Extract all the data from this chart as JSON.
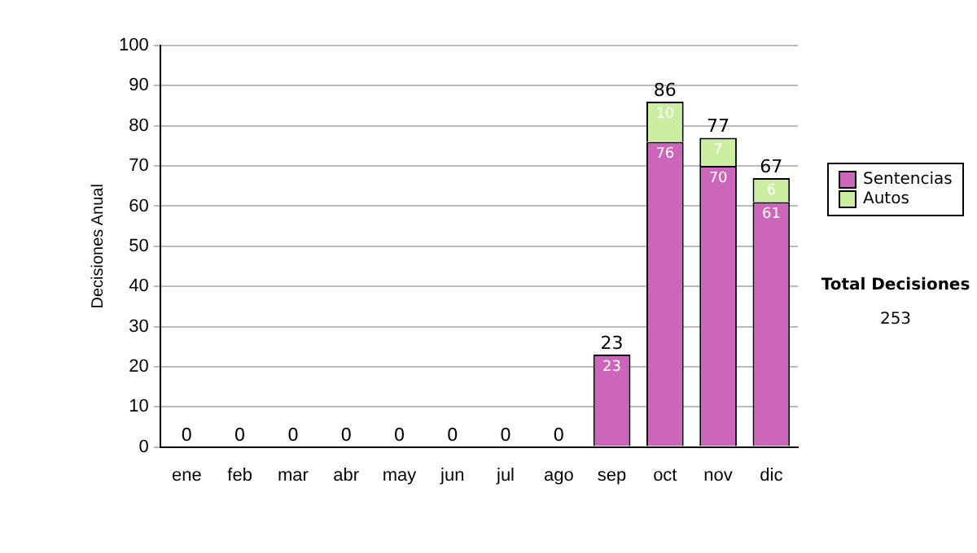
{
  "chart_data": {
    "type": "bar",
    "stacked": true,
    "ylabel": "Decisiones Anual",
    "categories": [
      "ene",
      "feb",
      "mar",
      "abr",
      "may",
      "jun",
      "jul",
      "ago",
      "sep",
      "oct",
      "nov",
      "dic"
    ],
    "series": [
      {
        "name": "Sentencias",
        "color": "#cc66bb",
        "values": [
          0,
          0,
          0,
          0,
          0,
          0,
          0,
          0,
          23,
          76,
          70,
          61
        ],
        "value_labels": [
          null,
          null,
          null,
          null,
          null,
          null,
          null,
          null,
          "23",
          "76",
          "70",
          "61"
        ]
      },
      {
        "name": "Autos",
        "color": "#cceea0",
        "values": [
          0,
          0,
          0,
          0,
          0,
          0,
          0,
          0,
          0,
          10,
          7,
          6
        ],
        "value_labels": [
          null,
          null,
          null,
          null,
          null,
          null,
          null,
          null,
          null,
          "10",
          "7",
          "6"
        ]
      }
    ],
    "totals": [
      "0",
      "0",
      "0",
      "0",
      "0",
      "0",
      "0",
      "0",
      "23",
      "86",
      "77",
      "67"
    ],
    "ylim": [
      0,
      100
    ],
    "yticks": [
      0,
      10,
      20,
      30,
      40,
      50,
      60,
      70,
      80,
      90,
      100
    ],
    "grid": "y",
    "legend": "right",
    "annotations": [
      "Total Decisiones",
      "253"
    ]
  }
}
